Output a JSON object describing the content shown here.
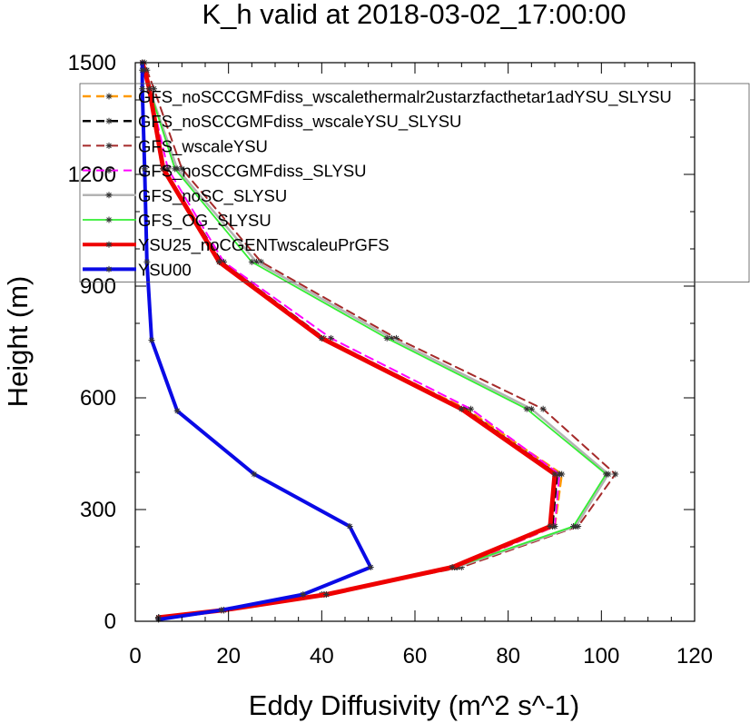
{
  "chart_data": {
    "type": "line",
    "title": "K_h valid at 2018-03-02_17:00:00",
    "xlabel": "Eddy Diffusivity (m^2 s^-1)",
    "ylabel": "Height (m)",
    "xlim": [
      0,
      120
    ],
    "ylim": [
      0,
      1500
    ],
    "xticks": [
      0,
      20,
      40,
      60,
      80,
      100,
      120
    ],
    "yticks": [
      0,
      300,
      600,
      900,
      1200,
      1500
    ],
    "xtick_labels": [
      "0",
      "20",
      "40",
      "60",
      "80",
      "100",
      "120"
    ],
    "ytick_labels": [
      "0",
      "300",
      "600",
      "900",
      "1200",
      "1500"
    ],
    "grid": false,
    "legend_position": "top-right",
    "series": [
      {
        "name": "GFS_noSCCGMFdiss_wscalethermalr2ustarzfacthetar1adYSU_SLYSU",
        "color": "#ff9900",
        "dash": "dashed",
        "width": 2.5,
        "x": [
          5,
          19,
          41,
          69,
          90,
          91.5,
          71,
          40,
          18,
          6,
          3,
          2,
          1.5
        ],
        "y": [
          10,
          30,
          72,
          145,
          255,
          395,
          570,
          760,
          965,
          1215,
          1430,
          1480,
          1500
        ]
      },
      {
        "name": "GFS_noSCCGMFdiss_wscaleYSU_SLYSU",
        "color": "#000000",
        "dash": "dashed",
        "width": 2.5,
        "x": [
          5,
          19,
          41,
          68.5,
          89.5,
          90.5,
          70.5,
          40.5,
          18.5,
          6,
          3,
          2,
          1.5
        ],
        "y": [
          10,
          30,
          72,
          145,
          255,
          395,
          570,
          760,
          965,
          1215,
          1430,
          1480,
          1500
        ]
      },
      {
        "name": "GFS_wscaleYSU",
        "color": "#a52a2a",
        "dash": "dashed",
        "width": 2,
        "x": [
          5,
          18.5,
          40,
          70,
          95,
          103,
          87.5,
          56,
          27,
          10,
          4,
          2.5,
          2
        ],
        "y": [
          8,
          30,
          72,
          145,
          255,
          395,
          570,
          760,
          965,
          1215,
          1430,
          1480,
          1500
        ]
      },
      {
        "name": "GFS_noSCCGMFdiss_SLYSU",
        "color": "#ff00ff",
        "dash": "dashed",
        "width": 2,
        "x": [
          5,
          19,
          41,
          69,
          90,
          91,
          72,
          42,
          19,
          7,
          3,
          2,
          1.5
        ],
        "y": [
          10,
          30,
          72,
          145,
          255,
          395,
          570,
          760,
          965,
          1215,
          1430,
          1480,
          1500
        ]
      },
      {
        "name": "GFS_noSC_SLYSU",
        "color": "#b3b3b3",
        "dash": "solid",
        "width": 2.5,
        "x": [
          5,
          19,
          40.5,
          69,
          94.5,
          101.5,
          85,
          55,
          26,
          9,
          3,
          2,
          1.5
        ],
        "y": [
          10,
          30,
          72,
          145,
          255,
          395,
          570,
          760,
          965,
          1215,
          1430,
          1480,
          1500
        ]
      },
      {
        "name": "GFS_OG_SLYSU",
        "color": "#33ee33",
        "dash": "solid",
        "width": 1.8,
        "x": [
          5,
          19,
          40.5,
          68.5,
          94,
          101,
          84,
          54,
          25,
          8.5,
          3,
          2,
          1.5
        ],
        "y": [
          10,
          30,
          72,
          145,
          255,
          395,
          570,
          760,
          965,
          1215,
          1430,
          1480,
          1500
        ]
      },
      {
        "name": "YSU25_noCGENTwscaleuPrGFS",
        "color": "#ee0000",
        "dash": "solid",
        "width": 5,
        "x": [
          5,
          19,
          41,
          68,
          89,
          90,
          70,
          40,
          18,
          6,
          3,
          2,
          1.5
        ],
        "y": [
          10,
          30,
          72,
          145,
          255,
          395,
          570,
          760,
          965,
          1215,
          1430,
          1480,
          1500
        ]
      },
      {
        "name": "YSU00",
        "color": "#0a0ae6",
        "dash": "solid",
        "width": 4,
        "x": [
          5,
          18.5,
          36,
          50.5,
          46,
          25.5,
          9,
          3.5,
          2.5,
          2,
          1.5,
          1.5,
          1.5
        ],
        "y": [
          5,
          30,
          72,
          145,
          255,
          395,
          565,
          755,
          965,
          1215,
          1430,
          1480,
          1500
        ]
      }
    ]
  }
}
